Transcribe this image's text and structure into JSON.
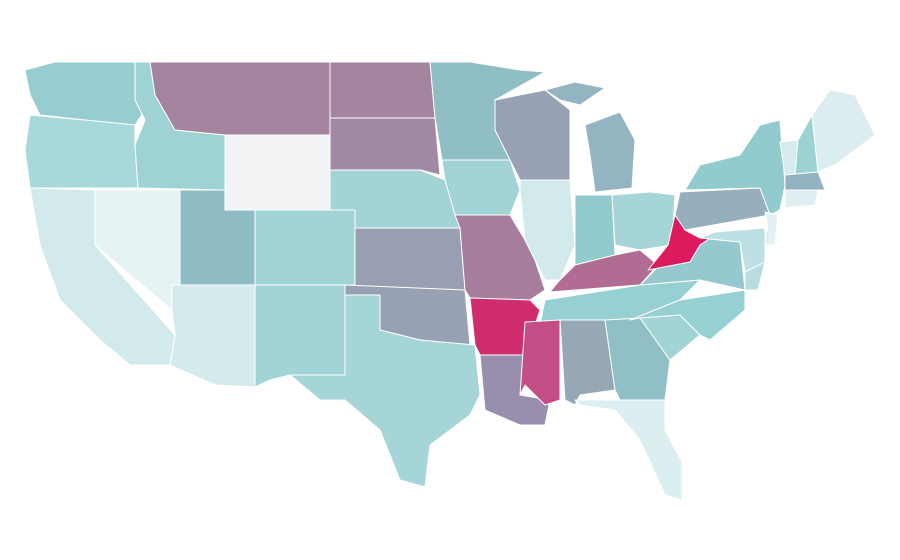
{
  "map": {
    "background": "#ffffff",
    "border_color": "#ffffff",
    "fills": [
      "#96cdd0",
      "#a8d8da",
      "#d3eaec",
      "#e6f3f5",
      "#9fd2d4",
      "#a584a0",
      "#f2f3f5",
      "#8fbcc4",
      "#a2d4d6",
      "#d4eaec",
      "#a2d3d5",
      "#a584a0",
      "#a38aa4",
      "#a2d3d5",
      "#989fb2",
      "#98a1b3",
      "#a6d5d7",
      "#8fbec5",
      "#a2d3d5",
      "#a67d9c",
      "#cf2d6e",
      "#988fae",
      "#98a1b3",
      "#d3eaec",
      "#93b4c1",
      "#91cbce",
      "#a6d5d7",
      "#b06c92",
      "#96d0d2",
      "#c34d85",
      "#96a8b6",
      "#90c0c6",
      "#dbeef0",
      "#a2d3d5",
      "#96d0d2",
      "#96c9cf",
      "#97aebd",
      "#de1a5e",
      "#91cbce",
      "#d6ecee",
      "#9bd3d3",
      "#dcedf0",
      "#93b2bf",
      "#dfeef0",
      "#e3f1f3",
      "#bce0e4",
      "#b7dde0"
    ]
  }
}
